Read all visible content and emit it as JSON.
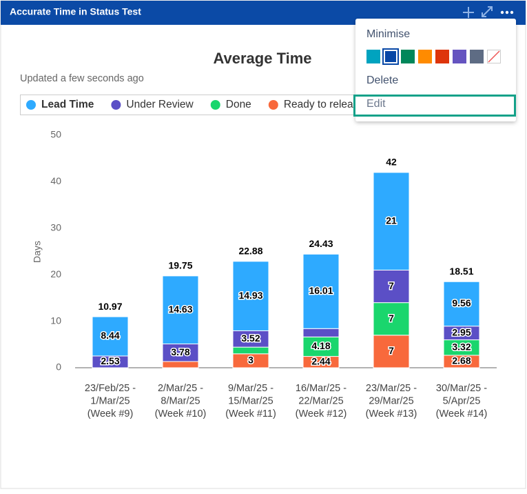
{
  "header": {
    "title": "Accurate Time in Status Test"
  },
  "menu": {
    "items": [
      "Minimise",
      "Delete",
      "Edit"
    ]
  },
  "chart_data": {
    "type": "stacked-bar",
    "title": "Average Time",
    "subtitle": "Updated a few seconds ago",
    "y_label": "Days",
    "categories": [
      [
        "23/Feb/25 -",
        "1/Mar/25",
        "(Week #9)"
      ],
      [
        "2/Mar/25 -",
        "8/Mar/25",
        "(Week #10)"
      ],
      [
        "9/Mar/25 -",
        "15/Mar/25",
        "(Week #11)"
      ],
      [
        "16/Mar/25 -",
        "22/Mar/25",
        "(Week #12)"
      ],
      [
        "23/Mar/25 -",
        "29/Mar/25",
        "(Week #13)"
      ],
      [
        "30/Mar/25 -",
        "5/Apr/25",
        "(Week #14)"
      ]
    ],
    "series": [
      {
        "name": "Lead Time",
        "color": "#2eaaff",
        "values": [
          8.44,
          14.63,
          14.93,
          16.01,
          21,
          9.56
        ]
      },
      {
        "name": "Under Review",
        "color": "#5b4fc6",
        "values": [
          2.53,
          3.78,
          3.52,
          1.8,
          7,
          2.95
        ]
      },
      {
        "name": "Done",
        "color": "#1ad66d",
        "values": [
          null,
          null,
          1.43,
          4.18,
          7,
          3.32
        ]
      },
      {
        "name": "Ready to release",
        "color": "#f8693c",
        "values": [
          null,
          1.34,
          3,
          2.44,
          7,
          2.68
        ]
      }
    ],
    "totals": [
      10.97,
      19.75,
      22.88,
      24.43,
      42,
      18.51
    ],
    "ylim": [
      0,
      50
    ],
    "yticks": [
      0,
      10,
      20,
      30,
      40,
      50
    ],
    "grid": false
  }
}
